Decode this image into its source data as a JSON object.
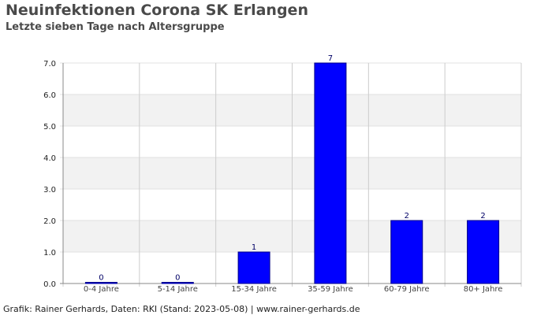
{
  "header": {
    "title": "Neuinfektionen Corona SK Erlangen",
    "subtitle": "Letzte sieben Tage nach Altersgruppe"
  },
  "footer": {
    "credit": "Grafik: Rainer Gerhards, Daten: RKI (Stand: 2023-05-08) | www.rainer-gerhards.de"
  },
  "chart_data": {
    "type": "bar",
    "title": "Neuinfektionen Corona SK Erlangen",
    "subtitle": "Letzte sieben Tage nach Altersgruppe",
    "xlabel": "",
    "ylabel": "",
    "categories": [
      "0-4 Jahre",
      "5-14 Jahre",
      "15-34 Jahre",
      "35-59 Jahre",
      "60-79 Jahre",
      "80+ Jahre"
    ],
    "values": [
      0,
      0,
      1,
      7,
      2,
      2
    ],
    "data_labels": [
      "0",
      "0",
      "1",
      "7",
      "2",
      "2"
    ],
    "ylim": [
      0,
      7
    ],
    "yticks": [
      "0.0",
      "1.0",
      "2.0",
      "3.0",
      "4.0",
      "5.0",
      "6.0",
      "7.0"
    ],
    "grid": true,
    "legend": "none",
    "colors": {
      "bar_fill": "#0000ff",
      "bar_stroke": "#000088",
      "band": "#f2f2f2",
      "grid": "#cccccc",
      "axis": "#888888"
    }
  }
}
